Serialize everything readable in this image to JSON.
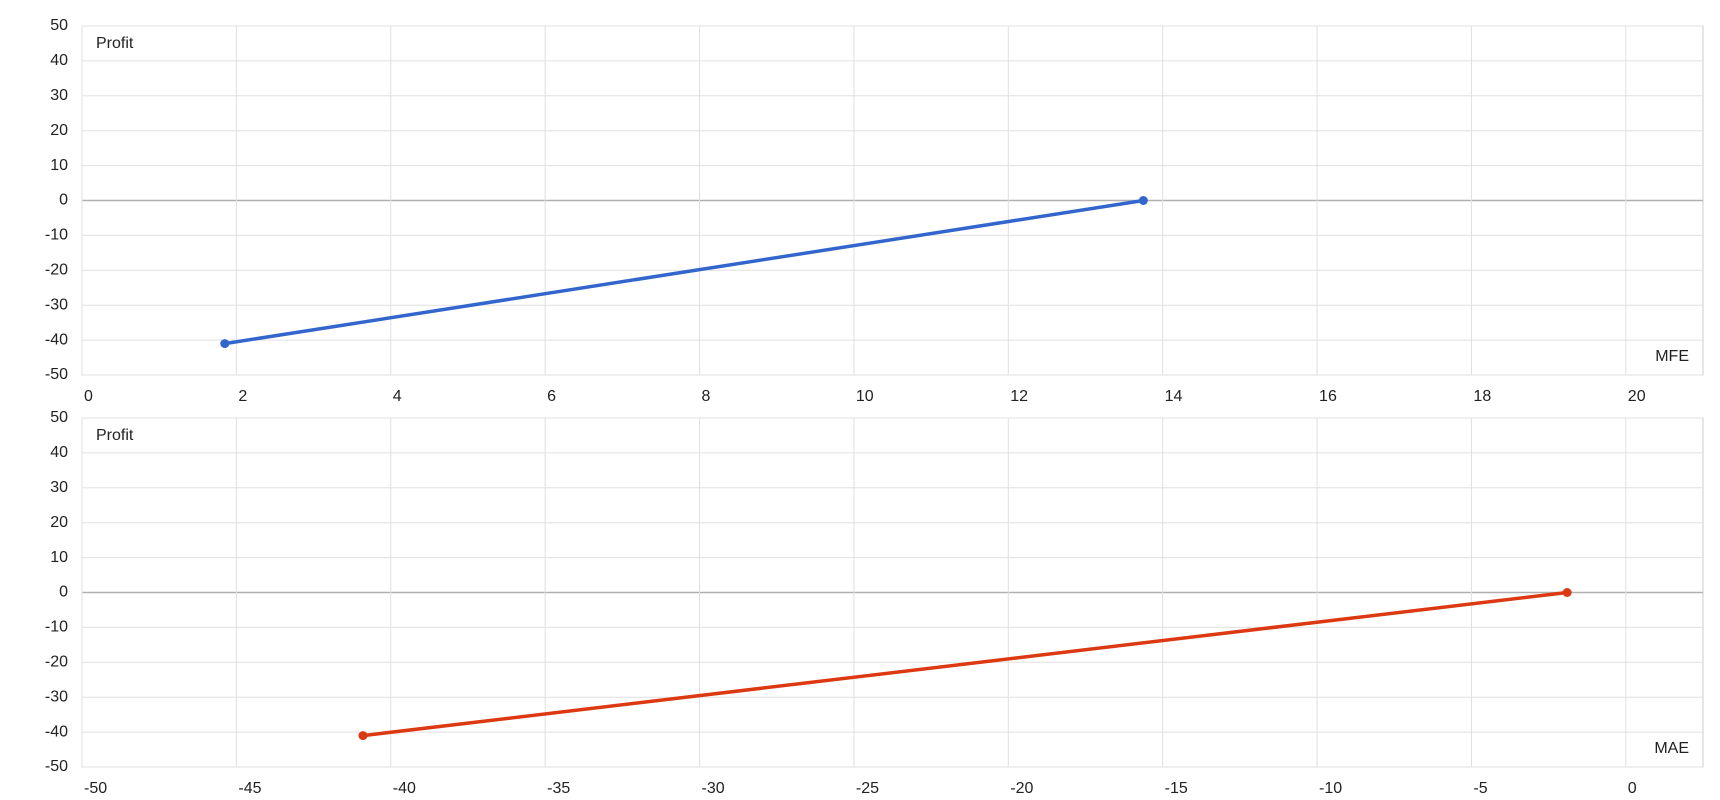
{
  "chart_data": [
    {
      "type": "line",
      "y_label": "Profit",
      "x_label": "MFE",
      "x": [
        1.85,
        13.75
      ],
      "values": [
        -41,
        0
      ],
      "color": "#3366cc",
      "xlim": [
        0,
        21
      ],
      "xticks": [
        0,
        2,
        4,
        6,
        8,
        10,
        12,
        14,
        16,
        18,
        20
      ],
      "ylim": [
        -50,
        50
      ],
      "yticks": [
        -50,
        -40,
        -30,
        -20,
        -10,
        0,
        10,
        20,
        30,
        40,
        50
      ],
      "grid": true
    },
    {
      "type": "line",
      "y_label": "Profit",
      "x_label": "MAE",
      "x": [
        -40.9,
        -1.9
      ],
      "values": [
        -41,
        0
      ],
      "color": "#dc3912",
      "xlim": [
        -50,
        2.5
      ],
      "xticks": [
        -50,
        -45,
        -40,
        -35,
        -30,
        -25,
        -20,
        -15,
        -10,
        -5,
        0
      ],
      "ylim": [
        -50,
        50
      ],
      "yticks": [
        -50,
        -40,
        -30,
        -20,
        -10,
        0,
        10,
        20,
        30,
        40,
        50
      ],
      "grid": true
    }
  ]
}
